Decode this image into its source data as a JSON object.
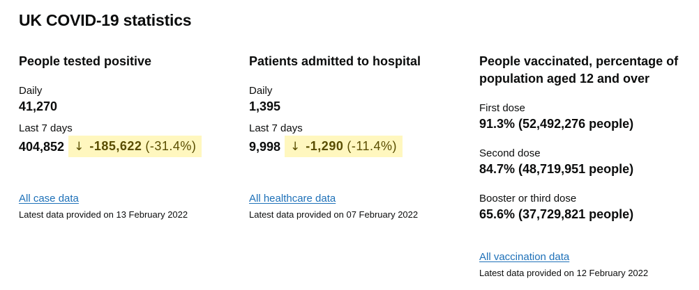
{
  "page_title": "UK COVID-19 statistics",
  "sections": [
    {
      "heading": "People tested positive",
      "daily_label": "Daily",
      "daily_value": "41,270",
      "week_label": "Last 7 days",
      "week_value": "404,852",
      "change_arrow": "↓",
      "change_value": "-185,622",
      "change_percent": "(-31.4%)",
      "link_text": "All case data",
      "updated": "Latest data provided on 13 February 2022"
    },
    {
      "heading": "Patients admitted to hospital",
      "daily_label": "Daily",
      "daily_value": "1,395",
      "week_label": "Last 7 days",
      "week_value": "9,998",
      "change_arrow": "↓",
      "change_value": "-1,290",
      "change_percent": "(-11.4%)",
      "link_text": "All healthcare data",
      "updated": "Latest data provided on 07 February 2022"
    },
    {
      "heading_line1": "People vaccinated, percentage of",
      "heading_line2": "population aged 12 and over",
      "doses": [
        {
          "label": "First dose",
          "value": "91.3% (52,492,276 people)"
        },
        {
          "label": "Second dose",
          "value": "84.7% (48,719,951 people)"
        },
        {
          "label": "Booster or third dose",
          "value": "65.6% (37,729,821 people)"
        }
      ],
      "link_text": "All vaccination data",
      "updated": "Latest data provided on 12 February 2022"
    }
  ],
  "colors": {
    "text": "#0b0c0c",
    "link": "#1d70b8",
    "change_bg": "#fff7bf",
    "change_text": "#594d00"
  }
}
